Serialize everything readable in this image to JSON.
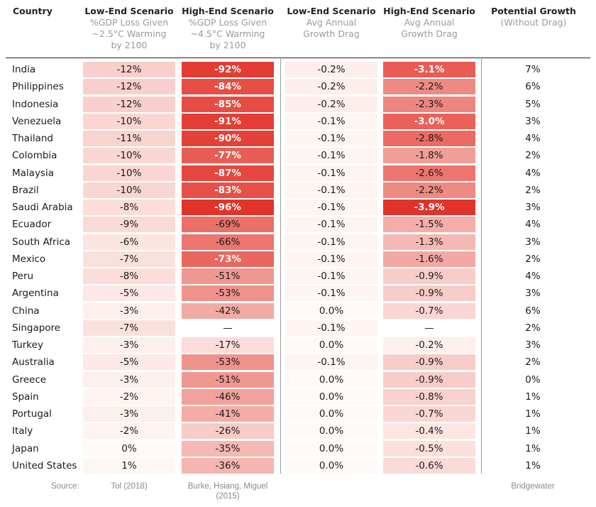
{
  "chart_data": {
    "type": "table",
    "columns": [
      {
        "key": "country",
        "title": "Country",
        "subtitle": ""
      },
      {
        "key": "low_loss",
        "title": "Low-End Scenario",
        "subtitle": "%GDP Loss Given\n~2.5°C Warming\nby 2100"
      },
      {
        "key": "high_loss",
        "title": "High-End Scenario",
        "subtitle": "%GDP Loss Given\n~4.5°C Warming\nby 2100"
      },
      {
        "key": "low_drag",
        "title": "Low-End Scenario",
        "subtitle": "Avg Annual\nGrowth Drag"
      },
      {
        "key": "high_drag",
        "title": "High-End Scenario",
        "subtitle": "Avg Annual\nGrowth Drag"
      },
      {
        "key": "growth",
        "title": "Potential Growth",
        "subtitle": "(Without Drag)"
      }
    ],
    "rows": [
      {
        "country": "India",
        "low_loss": -12,
        "high_loss": -92,
        "low_drag": -0.2,
        "high_drag": -3.1,
        "growth": 7
      },
      {
        "country": "Philippines",
        "low_loss": -12,
        "high_loss": -84,
        "low_drag": -0.2,
        "high_drag": -2.2,
        "growth": 6
      },
      {
        "country": "Indonesia",
        "low_loss": -12,
        "high_loss": -85,
        "low_drag": -0.2,
        "high_drag": -2.3,
        "growth": 5
      },
      {
        "country": "Venezuela",
        "low_loss": -10,
        "high_loss": -91,
        "low_drag": -0.1,
        "high_drag": -3.0,
        "growth": 3
      },
      {
        "country": "Thailand",
        "low_loss": -11,
        "high_loss": -90,
        "low_drag": -0.1,
        "high_drag": -2.8,
        "growth": 4
      },
      {
        "country": "Colombia",
        "low_loss": -10,
        "high_loss": -77,
        "low_drag": -0.1,
        "high_drag": -1.8,
        "growth": 2
      },
      {
        "country": "Malaysia",
        "low_loss": -10,
        "high_loss": -87,
        "low_drag": -0.1,
        "high_drag": -2.6,
        "growth": 4
      },
      {
        "country": "Brazil",
        "low_loss": -10,
        "high_loss": -83,
        "low_drag": -0.1,
        "high_drag": -2.2,
        "growth": 2
      },
      {
        "country": "Saudi Arabia",
        "low_loss": -8,
        "high_loss": -96,
        "low_drag": -0.1,
        "high_drag": -3.9,
        "growth": 3
      },
      {
        "country": "Ecuador",
        "low_loss": -9,
        "high_loss": -69,
        "low_drag": -0.1,
        "high_drag": -1.5,
        "growth": 4
      },
      {
        "country": "South Africa",
        "low_loss": -6,
        "high_loss": -66,
        "low_drag": -0.1,
        "high_drag": -1.3,
        "growth": 3
      },
      {
        "country": "Mexico",
        "low_loss": -7,
        "high_loss": -73,
        "low_drag": -0.1,
        "high_drag": -1.6,
        "growth": 2
      },
      {
        "country": "Peru",
        "low_loss": -8,
        "high_loss": -51,
        "low_drag": -0.1,
        "high_drag": -0.9,
        "growth": 4
      },
      {
        "country": "Argentina",
        "low_loss": -5,
        "high_loss": -53,
        "low_drag": -0.1,
        "high_drag": -0.9,
        "growth": 3
      },
      {
        "country": "China",
        "low_loss": -3,
        "high_loss": -42,
        "low_drag": 0.0,
        "high_drag": -0.7,
        "growth": 6
      },
      {
        "country": "Singapore",
        "low_loss": -7,
        "high_loss": null,
        "low_drag": -0.1,
        "high_drag": null,
        "growth": 2
      },
      {
        "country": "Turkey",
        "low_loss": -3,
        "high_loss": -17,
        "low_drag": 0.0,
        "high_drag": -0.2,
        "growth": 3
      },
      {
        "country": "Australia",
        "low_loss": -5,
        "high_loss": -53,
        "low_drag": -0.1,
        "high_drag": -0.9,
        "growth": 2
      },
      {
        "country": "Greece",
        "low_loss": -3,
        "high_loss": -51,
        "low_drag": 0.0,
        "high_drag": -0.9,
        "growth": 0
      },
      {
        "country": "Spain",
        "low_loss": -2,
        "high_loss": -46,
        "low_drag": 0.0,
        "high_drag": -0.8,
        "growth": 1
      },
      {
        "country": "Portugal",
        "low_loss": -3,
        "high_loss": -41,
        "low_drag": 0.0,
        "high_drag": -0.7,
        "growth": 1
      },
      {
        "country": "Italy",
        "low_loss": -2,
        "high_loss": -26,
        "low_drag": 0.0,
        "high_drag": -0.4,
        "growth": 1
      },
      {
        "country": "Japan",
        "low_loss": 0,
        "high_loss": -35,
        "low_drag": 0.0,
        "high_drag": -0.5,
        "growth": 1
      },
      {
        "country": "United States",
        "low_loss": 1,
        "high_loss": -36,
        "low_drag": 0.0,
        "high_drag": -0.6,
        "growth": 1
      }
    ],
    "missing_value_text": "—",
    "color_scale": {
      "low": "#fffaf8",
      "high": "#e2332a"
    },
    "sources": {
      "label": "Source:",
      "low_loss": "Tol (2018)",
      "high_loss": "Burke, Hsiang, Miguel\n(2015)",
      "growth": "Bridgewater"
    }
  }
}
